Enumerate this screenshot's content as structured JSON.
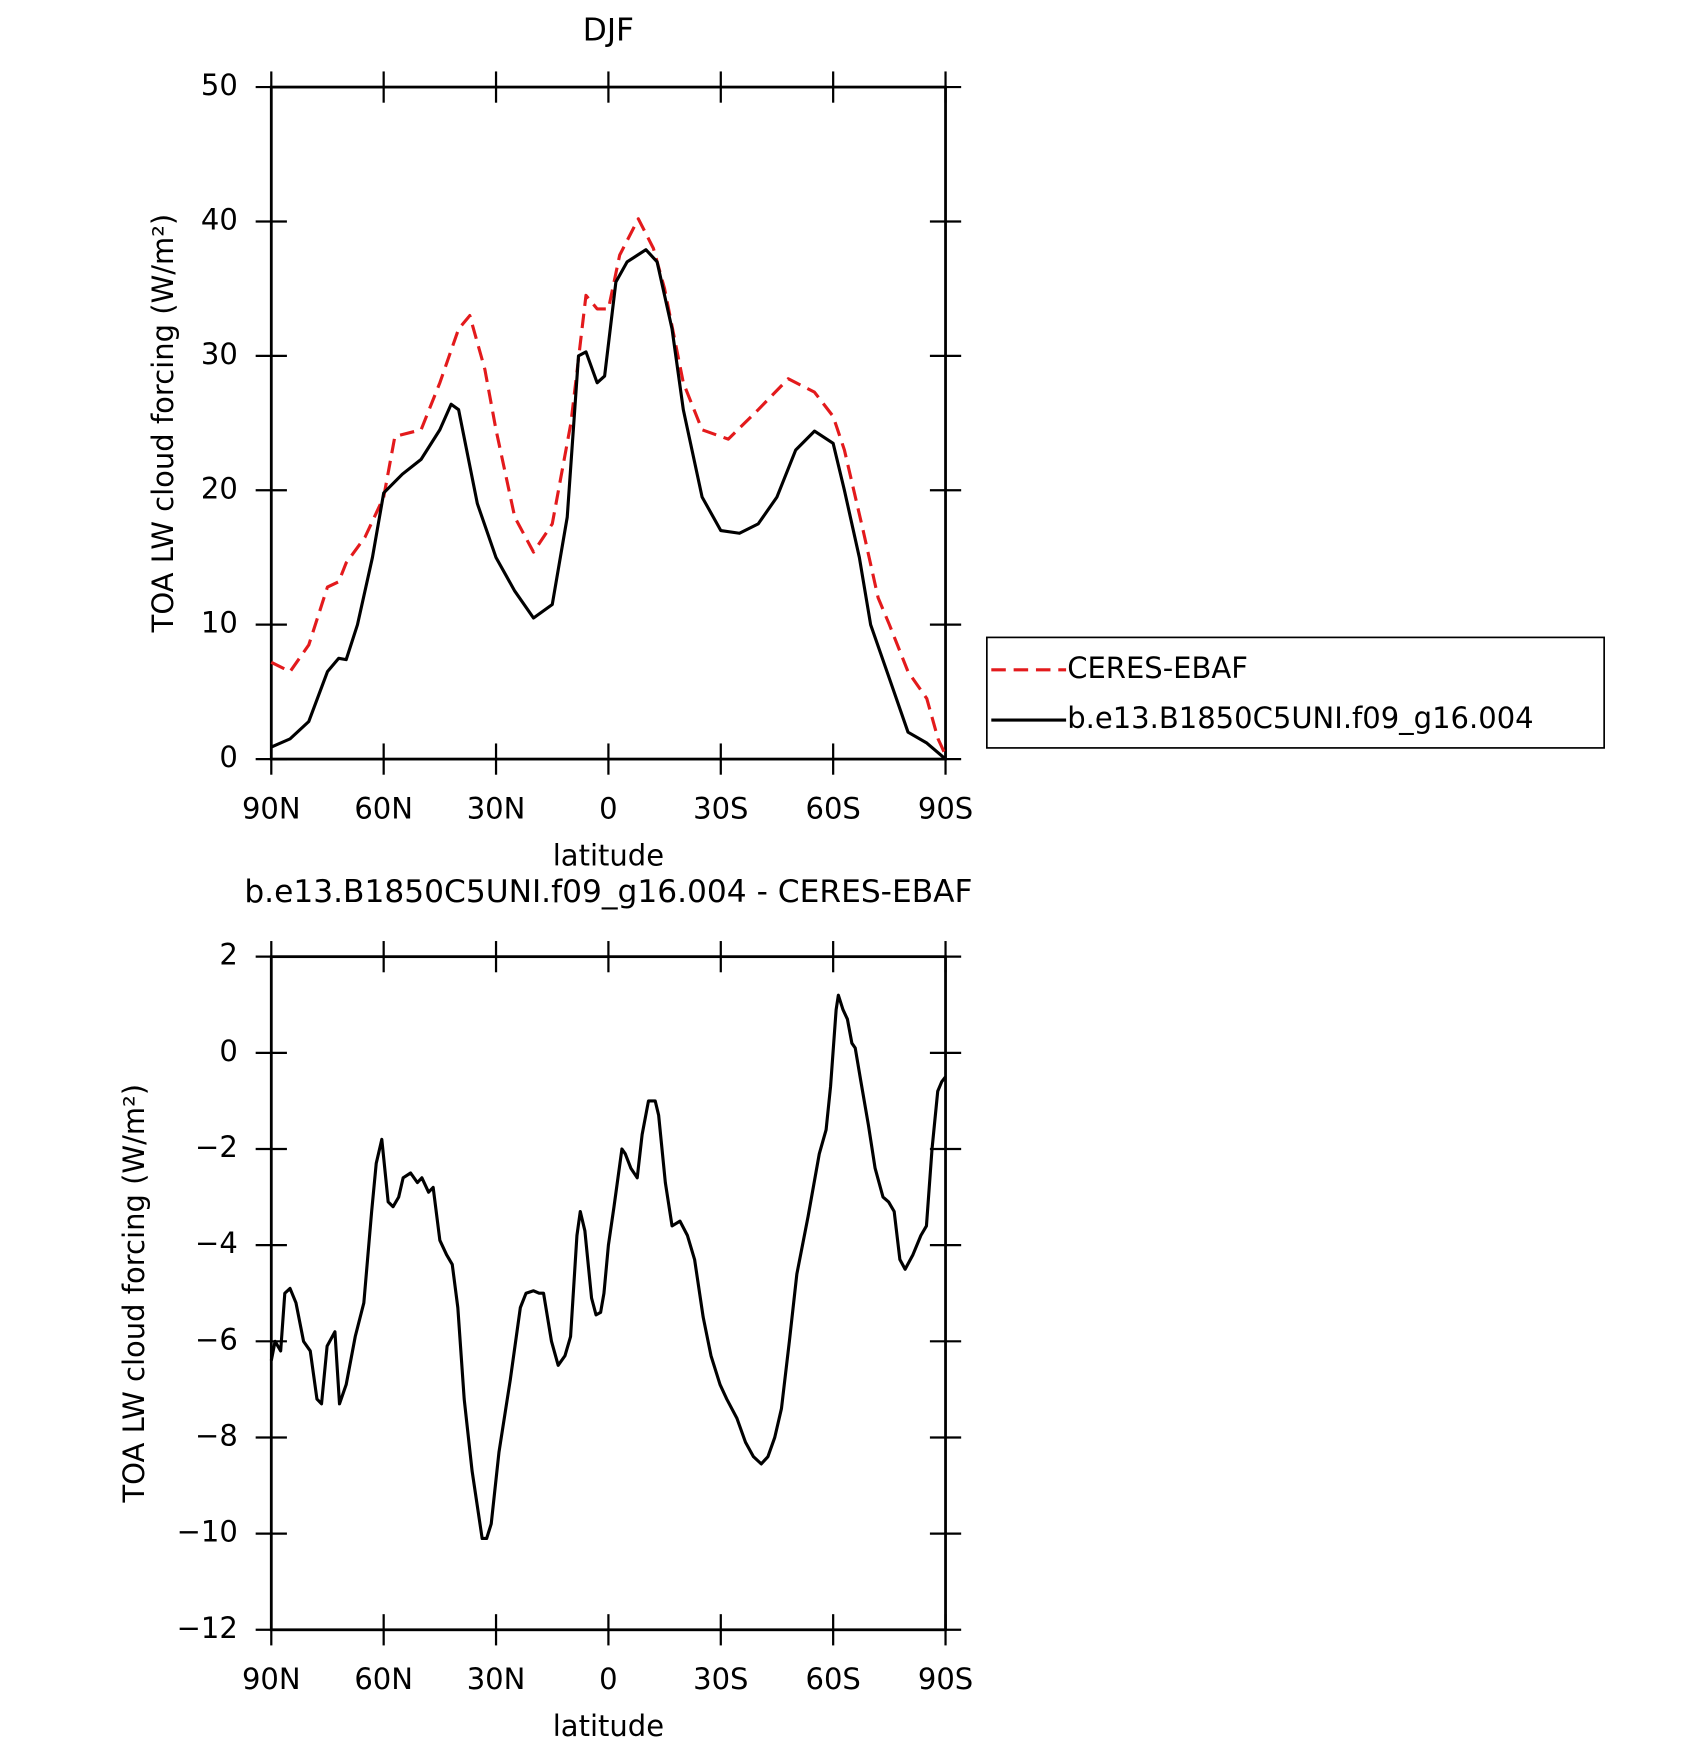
{
  "chart_data": [
    {
      "type": "line",
      "title": "DJF",
      "xlabel": "latitude",
      "ylabel": "TOA LW cloud forcing (W/m²)",
      "xlim": [
        90,
        -90
      ],
      "xticks": [
        {
          "value": 90,
          "label": "90N"
        },
        {
          "value": 60,
          "label": "60N"
        },
        {
          "value": 30,
          "label": "30N"
        },
        0,
        {
          "value": -30,
          "label": "30S"
        },
        {
          "value": -60,
          "label": "60S"
        },
        {
          "value": -90,
          "label": "90S"
        }
      ],
      "ylim": [
        0,
        50
      ],
      "yticks": [
        0,
        10,
        20,
        30,
        40,
        50
      ],
      "legend": "right",
      "series": [
        {
          "name": "CERES-EBAF",
          "color": "#e31a1c",
          "dash": true,
          "x": [
            90,
            85,
            80,
            75,
            72,
            70,
            65,
            60,
            57,
            50,
            45,
            40,
            37,
            33,
            30,
            25,
            20,
            15,
            10,
            6,
            3,
            0,
            -3,
            -8,
            -12,
            -15,
            -20,
            -25,
            -32,
            -40,
            -48,
            -55,
            -60,
            -63,
            -68,
            -72,
            -75,
            -80,
            -85,
            -88,
            -90
          ],
          "values": [
            7.2,
            6.5,
            8.5,
            12.8,
            13.2,
            14.6,
            16.5,
            19.5,
            24,
            24.5,
            28,
            32,
            33,
            29,
            24.5,
            18,
            15.4,
            17.5,
            25,
            34.5,
            33.5,
            33.5,
            37.5,
            40.2,
            38,
            35,
            28,
            24.5,
            23.8,
            26,
            28.3,
            27.3,
            25.5,
            23,
            17,
            12,
            10,
            6.5,
            4.5,
            1.5,
            0.3
          ]
        },
        {
          "name": "b.e13.B1850C5UNI.f09_g16.004",
          "color": "#000000",
          "dash": false,
          "x": [
            90,
            85,
            80,
            75,
            72,
            70,
            67,
            63,
            60,
            55,
            50,
            45,
            42,
            40,
            35,
            30,
            25,
            20,
            15,
            11,
            8,
            6,
            3,
            1,
            -2,
            -5,
            -10,
            -13,
            -17,
            -20,
            -25,
            -30,
            -35,
            -40,
            -45,
            -50,
            -55,
            -60,
            -63,
            -67,
            -70,
            -75,
            -80,
            -85,
            -90
          ],
          "values": [
            0.9,
            1.5,
            2.8,
            6.5,
            7.5,
            7.4,
            10,
            15,
            19.8,
            21.2,
            22.3,
            24.5,
            26.4,
            26,
            19,
            15,
            12.5,
            10.5,
            11.5,
            18,
            30,
            30.3,
            28,
            28.5,
            35.5,
            37,
            37.9,
            37,
            32,
            26,
            19.5,
            17,
            16.8,
            17.5,
            19.5,
            23,
            24.4,
            23.5,
            20,
            15,
            10,
            6,
            2,
            1.2,
            0
          ]
        }
      ]
    },
    {
      "type": "line",
      "title": "b.e13.B1850C5UNI.f09_g16.004 - CERES-EBAF",
      "xlabel": "latitude",
      "ylabel": "TOA LW cloud forcing (W/m²)",
      "xlim": [
        90,
        -90
      ],
      "xticks": [
        {
          "value": 90,
          "label": "90N"
        },
        {
          "value": 60,
          "label": "60N"
        },
        {
          "value": 30,
          "label": "30N"
        },
        0,
        {
          "value": -30,
          "label": "30S"
        },
        {
          "value": -60,
          "label": "60S"
        },
        {
          "value": -90,
          "label": "90S"
        }
      ],
      "ylim": [
        -12,
        2
      ],
      "yticks": [
        {
          "value": -12,
          "label": "−12"
        },
        {
          "value": -10,
          "label": "−10"
        },
        {
          "value": -8,
          "label": "−8"
        },
        {
          "value": -6,
          "label": "−6"
        },
        {
          "value": -4,
          "label": "−4"
        },
        {
          "value": -2,
          "label": "−2"
        },
        0,
        2
      ],
      "color": "#000000",
      "x": [
        90,
        89,
        87.5,
        86.4,
        85,
        83.4,
        81.4,
        79.6,
        77.8,
        76.6,
        75.1,
        73,
        71.8,
        70,
        67.6,
        65.3,
        63.2,
        62,
        60.5,
        58.8,
        57.5,
        56,
        54.8,
        52.8,
        51,
        49.8,
        48,
        46.8,
        45,
        43.2,
        41.7,
        40.2,
        38.5,
        36.4,
        33.7,
        32.5,
        31.3,
        29.2,
        26.2,
        23.5,
        22,
        20,
        18.5,
        17.3,
        15.2,
        13.4,
        11.6,
        10.1,
        8.4,
        7.5,
        6.3,
        4.5,
        3.3,
        2.1,
        1.2,
        0,
        -1.5,
        -3.6,
        -4.5,
        -6,
        -7.7,
        -9,
        -10.7,
        -12.5,
        -13.4,
        -15.2,
        -17,
        -19.1,
        -21.1,
        -23,
        -25.3,
        -27.4,
        -29.8,
        -31.6,
        -34.3,
        -36.6,
        -38.7,
        -40.8,
        -42.6,
        -44.4,
        -46.2,
        -48.3,
        -50.3,
        -53.3,
        -56.3,
        -58.1,
        -59.3,
        -60.8,
        -61.4,
        -62.6,
        -63.8,
        -65,
        -65.9,
        -67.4,
        -69.4,
        -71.2,
        -73.3,
        -74.8,
        -76.3,
        -77.8,
        -79.2,
        -81.3,
        -83.4,
        -84.9,
        -86.4,
        -87.9,
        -89,
        -90
      ],
      "values": [
        -6.4,
        -6.0,
        -6.2,
        -5.0,
        -4.9,
        -5.2,
        -6.0,
        -6.2,
        -7.2,
        -7.3,
        -6.1,
        -5.8,
        -7.3,
        -6.9,
        -5.9,
        -5.2,
        -3.3,
        -2.3,
        -1.8,
        -3.1,
        -3.2,
        -3.0,
        -2.6,
        -2.5,
        -2.7,
        -2.6,
        -2.9,
        -2.8,
        -3.9,
        -4.2,
        -4.4,
        -5.3,
        -7.2,
        -8.7,
        -10.1,
        -10.1,
        -9.8,
        -8.3,
        -6.8,
        -5.3,
        -5.0,
        -4.95,
        -5.0,
        -5.0,
        -6.0,
        -6.5,
        -6.3,
        -5.9,
        -3.8,
        -3.3,
        -3.7,
        -5.1,
        -5.45,
        -5.4,
        -5.0,
        -4.0,
        -3.2,
        -2.0,
        -2.1,
        -2.4,
        -2.6,
        -1.7,
        -1.0,
        -1.0,
        -1.3,
        -2.7,
        -3.6,
        -3.5,
        -3.8,
        -4.3,
        -5.5,
        -6.3,
        -6.9,
        -7.2,
        -7.6,
        -8.1,
        -8.4,
        -8.55,
        -8.4,
        -8.0,
        -7.4,
        -6.0,
        -4.6,
        -3.4,
        -2.1,
        -1.6,
        -0.7,
        0.9,
        1.2,
        0.9,
        0.7,
        0.2,
        0.1,
        -0.6,
        -1.5,
        -2.4,
        -3.0,
        -3.1,
        -3.3,
        -4.3,
        -4.5,
        -4.2,
        -3.8,
        -3.6,
        -2.0,
        -0.8,
        -0.6,
        -0.5
      ]
    }
  ]
}
